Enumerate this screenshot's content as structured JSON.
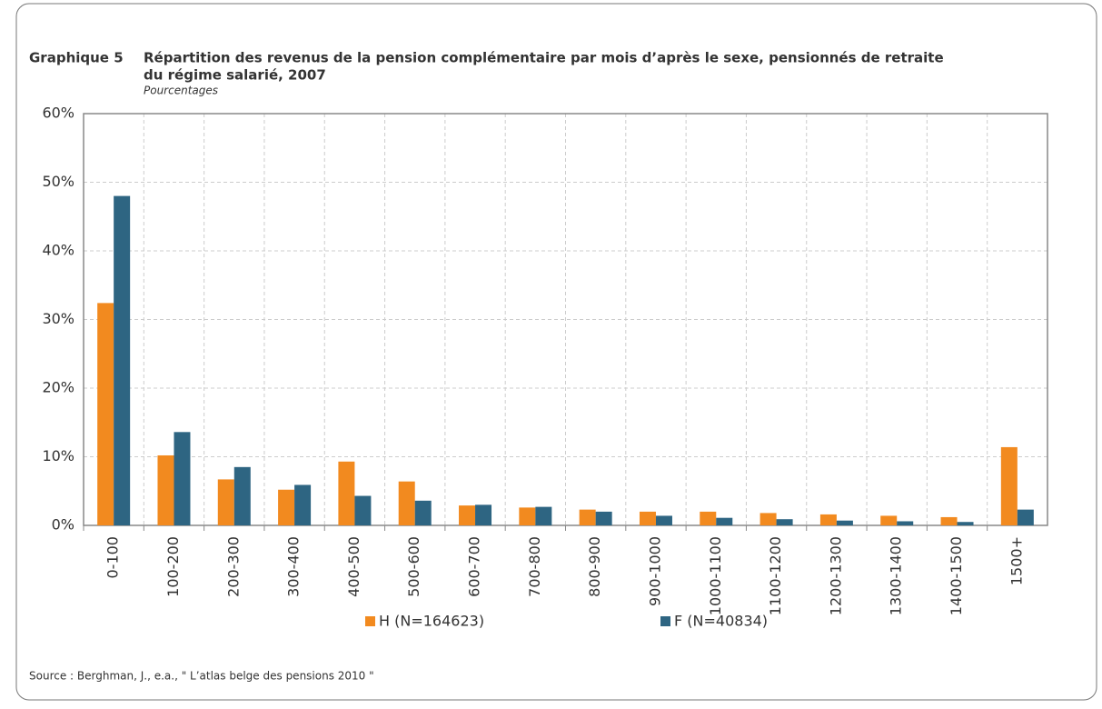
{
  "chart_data": {
    "type": "bar",
    "label": "Graphique 5",
    "title": [
      "Répartition des revenus de la pension complémentaire par mois d’après le sexe, pensionnés de retraite",
      "du régime salarié, 2007"
    ],
    "subtitle": "Pourcentages",
    "categories": [
      "0-100",
      "100-200",
      "200-300",
      "300-400",
      "400-500",
      "500-600",
      "600-700",
      "700-800",
      "800-900",
      "900-1000",
      "1000-1100",
      "1100-1200",
      "1200-1300",
      "1300-1400",
      "1400-1500",
      "1500+"
    ],
    "series": [
      {
        "name": "H (N=164623)",
        "color": "#f28a1f",
        "values": [
          32.4,
          10.2,
          6.7,
          5.2,
          9.3,
          6.4,
          2.9,
          2.6,
          2.3,
          2.0,
          2.0,
          1.8,
          1.6,
          1.4,
          1.2,
          11.4
        ]
      },
      {
        "name": "F (N=40834)",
        "color": "#2e6582",
        "values": [
          48.0,
          13.6,
          8.5,
          5.9,
          4.3,
          3.6,
          3.0,
          2.7,
          2.0,
          1.4,
          1.1,
          0.9,
          0.7,
          0.6,
          0.5,
          2.3
        ]
      }
    ],
    "ylim": [
      0,
      60
    ],
    "yticks": [
      {
        "value": 0,
        "label": "0%"
      },
      {
        "value": 10,
        "label": "10%"
      },
      {
        "value": 20,
        "label": "20%"
      },
      {
        "value": 30,
        "label": "30%"
      },
      {
        "value": 40,
        "label": "40%"
      },
      {
        "value": 50,
        "label": "50%"
      },
      {
        "value": 60,
        "label": "60%"
      }
    ],
    "grid": true,
    "source": "Source : Berghman, J., e.a., \" L’atlas belge des pensions 2010 \""
  }
}
